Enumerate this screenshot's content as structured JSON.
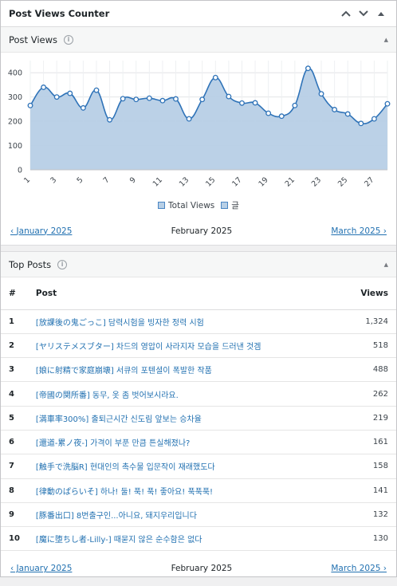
{
  "widget": {
    "title": "Post Views Counter"
  },
  "post_views": {
    "title": "Post Views",
    "legend": [
      {
        "label": "Total Views",
        "color": "#b7cfe6"
      },
      {
        "label": "글",
        "color": "#b7cfe6"
      }
    ],
    "nav": {
      "prev": "‹ January 2025",
      "current": "February 2025",
      "next": "March 2025 ›"
    }
  },
  "chart_data": {
    "type": "area",
    "x": [
      1,
      2,
      3,
      4,
      5,
      6,
      7,
      8,
      9,
      10,
      11,
      12,
      13,
      14,
      15,
      16,
      17,
      18,
      19,
      20,
      21,
      22,
      23,
      24,
      25,
      26,
      27,
      28
    ],
    "x_tick_labels": [
      "1",
      "3",
      "5",
      "7",
      "9",
      "11",
      "13",
      "15",
      "17",
      "19",
      "21",
      "23",
      "25",
      "27"
    ],
    "series": [
      {
        "name": "Total Views",
        "values": [
          265,
          340,
          300,
          315,
          255,
          328,
          206,
          293,
          290,
          295,
          285,
          292,
          210,
          290,
          380,
          302,
          275,
          276,
          233,
          221,
          265,
          418,
          313,
          248,
          230,
          191,
          210,
          272
        ]
      }
    ],
    "ylim": [
      0,
      450
    ],
    "y_ticks": [
      0,
      100,
      200,
      300,
      400
    ],
    "grid": true,
    "legend_position": "bottom",
    "colors": {
      "fill": "#b7cfe6",
      "line": "#2f73b8"
    }
  },
  "top_posts": {
    "title": "Top Posts",
    "columns": {
      "rank": "#",
      "post": "Post",
      "views": "Views"
    },
    "rows": [
      {
        "rank": "1",
        "title": "[放課後の鬼ごっこ] 담력시험을 빙자한 정력 시험",
        "views": "1,324"
      },
      {
        "rank": "2",
        "title": "[ヤリステメスブター] 차드의 영압이 사라지자 모습을 드러낸 것겜",
        "views": "518"
      },
      {
        "rank": "3",
        "title": "[娘に射精で家庭崩壊] 서큐의 포텐셜이 폭발한 작품",
        "views": "488"
      },
      {
        "rank": "4",
        "title": "[帝國の関所番] 동무, 옷 좀 벗어보시라요.",
        "views": "262"
      },
      {
        "rank": "5",
        "title": "[満車率300%] 출퇴근시간 신도림 앞보는 승차율",
        "views": "219"
      },
      {
        "rank": "6",
        "title": "[還道-累ノ夜-] 가격이 부푼 만큼 튼실해졌나?",
        "views": "161"
      },
      {
        "rank": "7",
        "title": "[触手で洗脳R] 현대인의 촉수물 입문작이 재래했도다",
        "views": "158"
      },
      {
        "rank": "8",
        "title": "[律動のぱらいそ] 하나! 둘! 푹! 푹! 좋아요! 푹푹푹!",
        "views": "141"
      },
      {
        "rank": "9",
        "title": "[豚番出口] 8번출구인...아니요, 돼지우리입니다",
        "views": "132"
      },
      {
        "rank": "10",
        "title": "[魔に堕ちし者-Lilly-] 때묻지 않은 순수함은 없다",
        "views": "130"
      }
    ],
    "nav": {
      "prev": "‹ January 2025",
      "current": "February 2025",
      "next": "March 2025 ›"
    }
  }
}
